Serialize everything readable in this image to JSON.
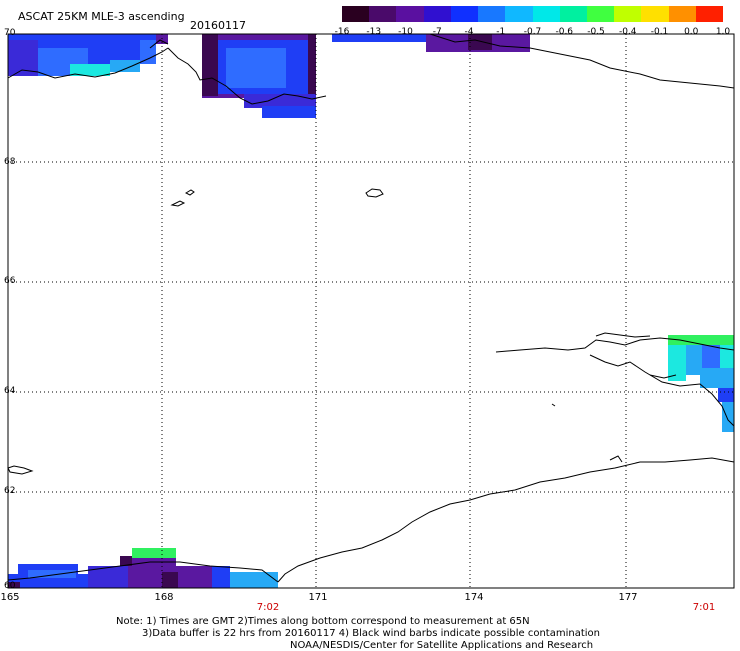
{
  "header": {
    "title": "ASCAT 25KM MLE-3 ascending",
    "date": "20160117"
  },
  "colorbar": {
    "labels": [
      "-16",
      "-13",
      "-10",
      "-7",
      "-4",
      "-1",
      "-0.7",
      "-0.6",
      "-0.5",
      "-0.4",
      "-0.1",
      "0.0",
      "1.0"
    ],
    "colors": [
      "#2a0020",
      "#4a0a6a",
      "#5a10a0",
      "#3010d0",
      "#1030ff",
      "#1878ff",
      "#10b8ff",
      "#00e8e8",
      "#00f0a0",
      "#40ff40",
      "#c0ff00",
      "#ffe000",
      "#ff9000",
      "#ff2000"
    ]
  },
  "map": {
    "lat_labels": [
      "70",
      "68",
      "66",
      "64",
      "62",
      "60"
    ],
    "lon_labels": [
      "165",
      "168",
      "171",
      "174",
      "177"
    ],
    "time_labels": [
      "7:02",
      "7:01"
    ],
    "colors": {
      "deep_purple": "#3a0850",
      "purple": "#5a18a0",
      "dark_blue": "#3a2ad8",
      "blue": "#1f3ef5",
      "mid_blue": "#2f6cff",
      "sky_blue": "#27a9f5",
      "cyan": "#1ce8e0",
      "green": "#30f060",
      "grid": "#000000",
      "coast": "#000000"
    }
  },
  "footer": {
    "note_line1": "Note: 1) Times are GMT 2)Times along bottom correspond to measurement at 65N",
    "note_line2": "3)Data buffer is 22 hrs from 20160117 4) Black wind barbs indicate possible contamination",
    "note_line3": "NOAA/NESDIS/Center for Satellite Applications and Research"
  }
}
